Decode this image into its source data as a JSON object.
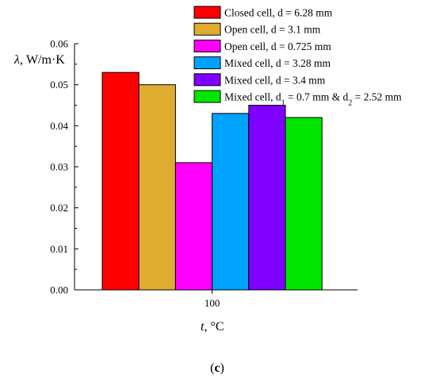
{
  "chart_data": {
    "type": "bar",
    "categories": [
      "100"
    ],
    "series": [
      {
        "name": "Closed cell, d = 6.28 mm",
        "values": [
          0.053
        ],
        "color": "#ff0000"
      },
      {
        "name": "Open cell, d = 3.1 mm",
        "values": [
          0.05
        ],
        "color": "#e0ac2f"
      },
      {
        "name": "Open cell, d = 0.725 mm",
        "values": [
          0.031
        ],
        "color": "#ff00ff"
      },
      {
        "name": "Mixed cell, d = 3.28 mm",
        "values": [
          0.043
        ],
        "color": "#00a2ff"
      },
      {
        "name": "Mixed cell, d = 3.4 mm",
        "values": [
          0.045
        ],
        "color": "#7f00ff"
      },
      {
        "name": "Mixed cell, d1 = 0.7 mm & d2 = 2.52 mm",
        "values": [
          0.042
        ],
        "color": "#00e600"
      }
    ],
    "legend_rich": [
      {
        "parts": [
          {
            "t": "Closed cell, d = 6.28 mm"
          }
        ]
      },
      {
        "parts": [
          {
            "t": "Open cell, d = 3.1 mm"
          }
        ]
      },
      {
        "parts": [
          {
            "t": "Open cell, d = 0.725 mm"
          }
        ]
      },
      {
        "parts": [
          {
            "t": "Mixed cell, d = 3.28 mm"
          }
        ]
      },
      {
        "parts": [
          {
            "t": "Mixed cell, d = 3.4 mm"
          }
        ]
      },
      {
        "parts": [
          {
            "t": "Mixed cell, d"
          },
          {
            "t": "1",
            "sub": true
          },
          {
            "t": " = 0.7 mm & d"
          },
          {
            "t": "2",
            "sub": true
          },
          {
            "t": " = 2.52 mm"
          }
        ]
      }
    ],
    "ylim": [
      0,
      0.06
    ],
    "yticks": [
      "0.00",
      "0.01",
      "0.02",
      "0.03",
      "0.04",
      "0.05",
      "0.06"
    ],
    "ylabel_symbol": "λ",
    "ylabel_rest": ", W/m·K",
    "xlabel_symbol": "t",
    "xlabel_rest": ", °C",
    "legend_position": "top-right",
    "panel_label": {
      "open": "(",
      "letter": "c",
      "close": ")"
    }
  }
}
